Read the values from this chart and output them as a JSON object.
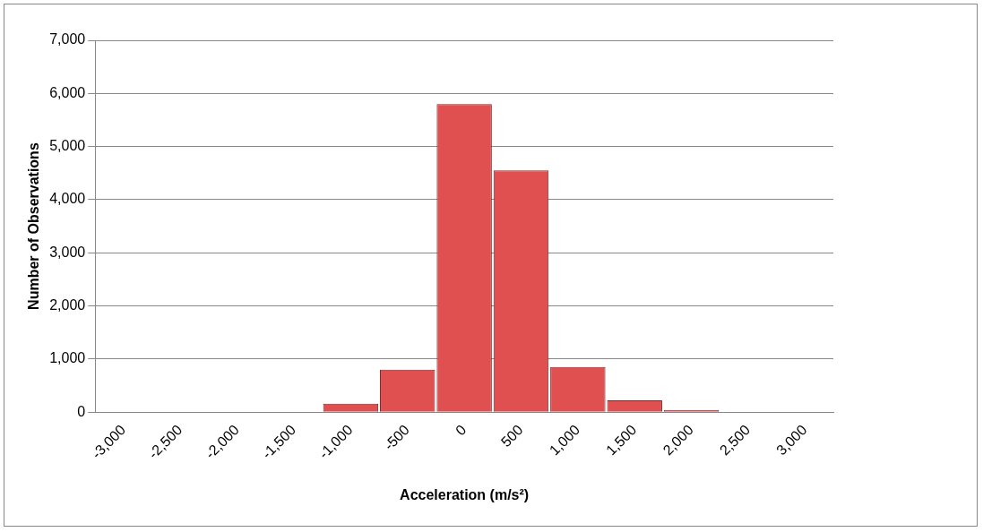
{
  "chart_data": {
    "type": "bar",
    "xlabel": "Acceleration (m/s²)",
    "ylabel": "Number of Observations",
    "categories": [
      "-3,000",
      "-2,500",
      "-2,000",
      "-1,500",
      "-1,000",
      "-500",
      "0",
      "500",
      "1,000",
      "1,500",
      "2,000",
      "2,500",
      "3,000"
    ],
    "values": [
      0,
      0,
      0,
      0,
      160,
      800,
      5800,
      4550,
      850,
      220,
      40,
      0,
      0
    ],
    "color": "#e05050",
    "ylim": [
      0,
      7000
    ],
    "yticks": [
      0,
      {
        "value": 1000,
        "label": "1,000"
      },
      {
        "value": 2000,
        "label": "2,000"
      },
      {
        "value": 3000,
        "label": "3,000"
      },
      {
        "value": 4000,
        "label": "4,000"
      },
      {
        "value": 5000,
        "label": "5,000"
      },
      {
        "value": 6000,
        "label": "6,000"
      },
      {
        "value": 7000,
        "label": "7,000"
      }
    ],
    "grid": "y",
    "legend": false
  }
}
